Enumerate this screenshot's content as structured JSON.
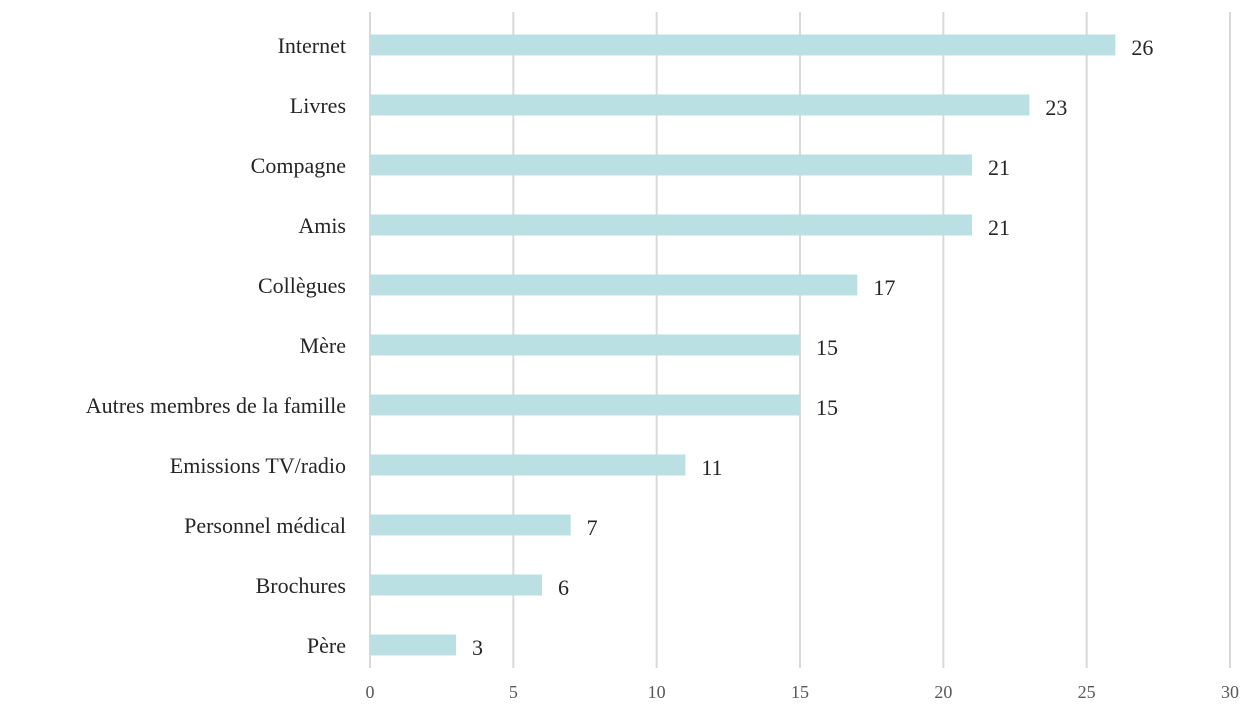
{
  "chart_data": {
    "type": "bar",
    "orientation": "horizontal",
    "title": "",
    "xlabel": "",
    "ylabel": "",
    "categories": [
      "Internet",
      "Livres",
      "Compagne",
      "Amis",
      "Collègues",
      "Mère",
      "Autres membres de la famille",
      "Emissions TV/radio",
      "Personnel médical",
      "Brochures",
      "Père"
    ],
    "values": [
      26,
      23,
      21,
      21,
      17,
      15,
      15,
      11,
      7,
      6,
      3
    ],
    "data_labels": [
      "26",
      "23",
      "21",
      "21",
      "17",
      "15",
      "15",
      "11",
      "7",
      "6",
      "3"
    ],
    "xlim": [
      0,
      30
    ],
    "x_ticks": [
      0,
      5,
      10,
      15,
      20,
      25,
      30
    ],
    "x_tick_labels": [
      "0",
      "5",
      "10",
      "15",
      "20",
      "25",
      "30"
    ],
    "grid": "vertical",
    "legend": "none",
    "colors": {
      "bar": "#bbe0e3",
      "grid": "#d9d9d9",
      "text": "#262626",
      "tick_text": "#595959"
    }
  }
}
